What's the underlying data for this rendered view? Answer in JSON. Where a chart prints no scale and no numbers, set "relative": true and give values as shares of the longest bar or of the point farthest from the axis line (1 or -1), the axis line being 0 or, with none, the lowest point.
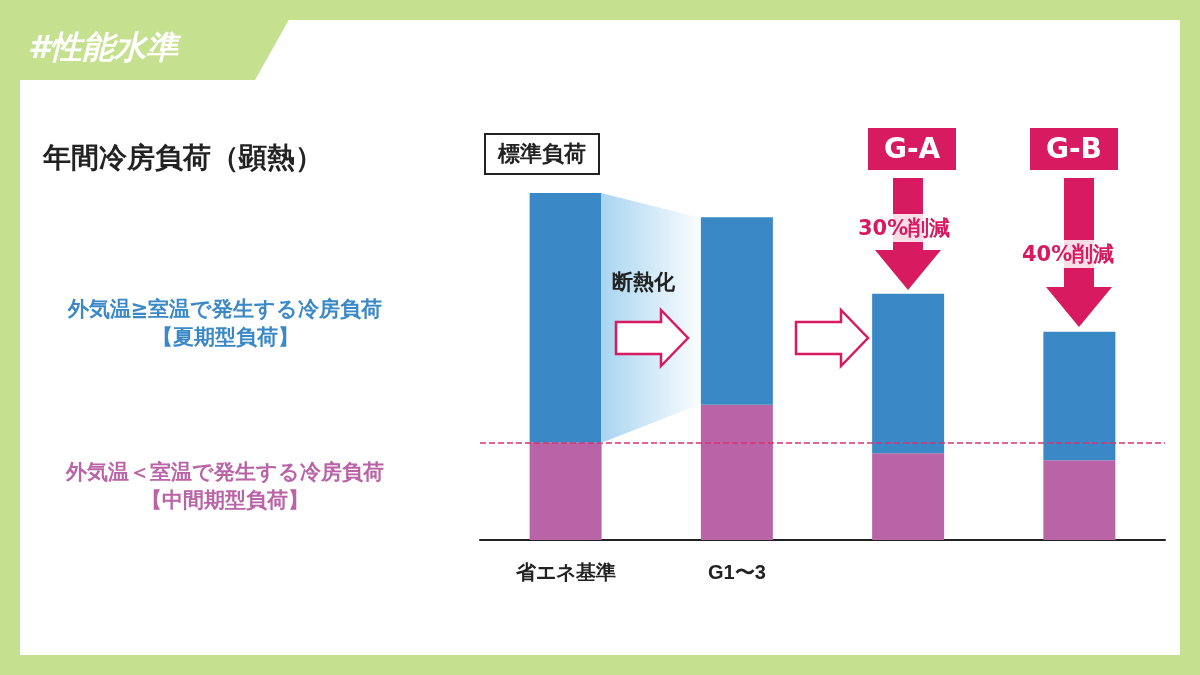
{
  "chart_data": {
    "type": "bar",
    "title": "年間冷房負荷（顕熱）",
    "categories": [
      "省エネ基準",
      "G1〜3",
      null,
      null
    ],
    "relative": true,
    "stacked": true,
    "series": [
      {
        "name": "外気温＜室温で発生する冷房負荷【中間期型負荷】",
        "color": "#b964a6",
        "values": [
          0.28,
          0.39,
          0.25,
          0.23
        ]
      },
      {
        "name": "外気温≧室温で発生する冷房負荷【夏期型負荷】",
        "color": "#3a88c5",
        "values": [
          0.72,
          0.54,
          0.46,
          0.37
        ]
      }
    ],
    "ref_lines": [
      {
        "axis": "y",
        "value": 0.28,
        "color": "#d6336f",
        "line_style": "dashed"
      }
    ],
    "annotations": [
      "#性能水準",
      "標準負荷",
      "断熱化",
      "G-A",
      "30%削減",
      "G-B",
      "40%削減"
    ]
  }
}
